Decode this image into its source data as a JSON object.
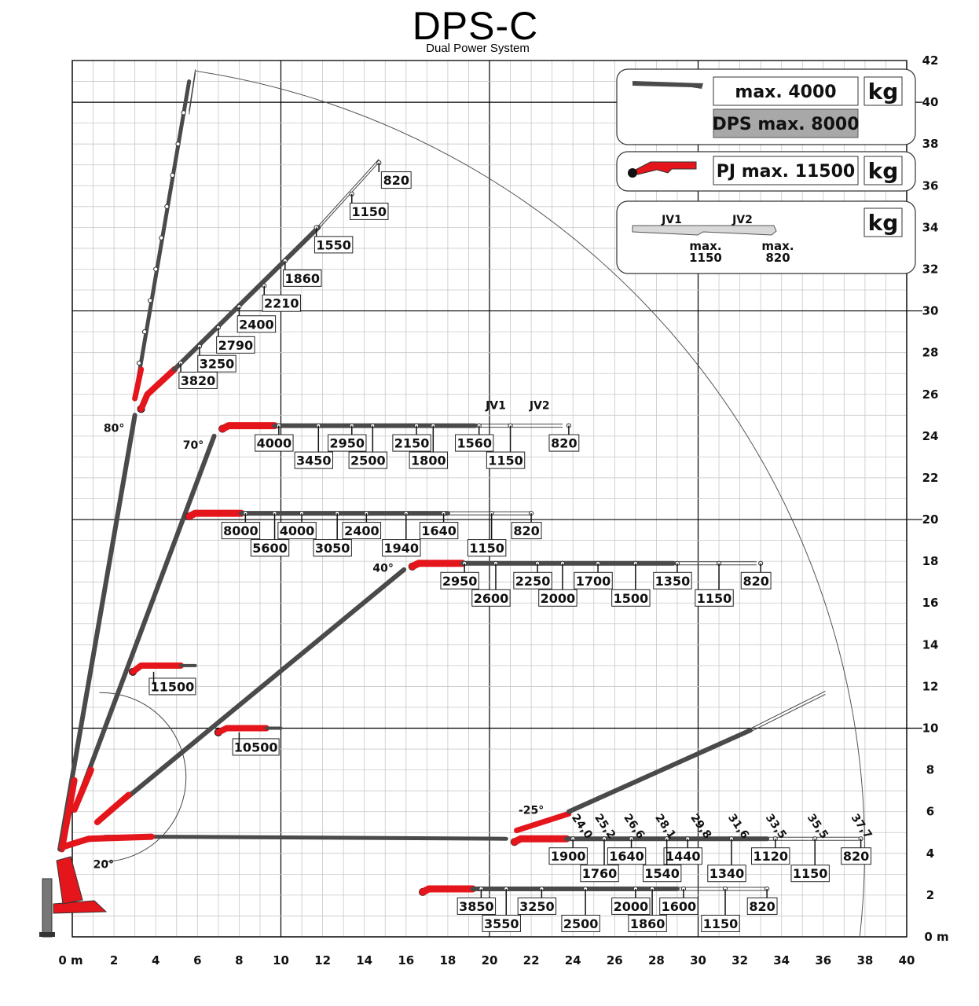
{
  "title": "DPS-C",
  "subtitle": "Dual Power System",
  "axes": {
    "x_ticks": [
      "0 m",
      "2",
      "4",
      "6",
      "8",
      "10",
      "12",
      "14",
      "16",
      "18",
      "20",
      "22",
      "24",
      "26",
      "28",
      "30",
      "32",
      "34",
      "36",
      "38",
      "40"
    ],
    "y_ticks": [
      "0 m",
      "2",
      "4",
      "6",
      "8",
      "10",
      "12",
      "14",
      "16",
      "18",
      "20",
      "22",
      "24",
      "26",
      "28",
      "30",
      "32",
      "34",
      "36",
      "38",
      "40",
      "42"
    ],
    "xlim": [
      0,
      40
    ],
    "ylim": [
      0,
      42
    ]
  },
  "legend": {
    "main_max": "max. 4000",
    "dps_max": "DPS max. 8000",
    "pj_max": "PJ max. 11500",
    "unit": "kg",
    "jv1": "JV1",
    "jv2": "JV2",
    "jv1_max": "max.\n1150",
    "jv2_max": "max.\n820"
  },
  "angles": [
    "80°",
    "70°",
    "40°",
    "20°",
    "-25°"
  ],
  "jib_labels": [
    "JV1",
    "JV2"
  ],
  "colors": {
    "boom": "#4a4a4a",
    "red": "#e4151b",
    "grid": "#c8c8c8",
    "major": "#000000"
  },
  "diagram_data": {
    "boom_80": {
      "red_start": [
        3.2,
        25.3
      ],
      "end": [
        14.7,
        37.2
      ],
      "loads": [
        "3820",
        "3250",
        "2790",
        "2400",
        "2210",
        "1860",
        "1550",
        "1150",
        "820"
      ]
    },
    "boom_70_horizontal": {
      "y": 24.5,
      "loads_top": [
        "4000",
        "2950",
        "2150",
        "1560",
        "820"
      ],
      "loads_bottom": [
        "3450",
        "2500",
        "1800",
        "1150"
      ]
    },
    "boom_60_horizontal": {
      "y": 20.1,
      "loads_top": [
        "8000",
        "4000",
        "2400",
        "1640",
        "820"
      ],
      "loads_bottom": [
        "5600",
        "3050",
        "1940",
        "1150"
      ]
    },
    "boom_40_horizontal": {
      "y": 17.8,
      "loads_top": [
        "2950",
        "2250",
        "1700",
        "1350",
        "820"
      ],
      "loads_bottom": [
        "2600",
        "2000",
        "1500",
        "1150"
      ]
    },
    "pj_80": {
      "load": "11500"
    },
    "pj_40": {
      "load": "10500"
    },
    "boom_20_horizontal": {
      "y": 4.6,
      "loads_top": [
        "1900",
        "1640",
        "1440",
        "1120",
        "820"
      ],
      "loads_bottom": [
        "1760",
        "1540",
        "1340",
        "1150"
      ]
    },
    "boom_low": {
      "y": 2.3,
      "loads_top": [
        "3850",
        "3250",
        "2000",
        "1600",
        "820"
      ],
      "loads_bottom": [
        "3550",
        "2500",
        "1860",
        "1150"
      ]
    },
    "boom_minus25": {
      "reach_labels": [
        "24,0",
        "25,2",
        "26,6",
        "28,1",
        "29,8",
        "31,6",
        "33,5",
        "35,5",
        "37,7"
      ]
    }
  }
}
